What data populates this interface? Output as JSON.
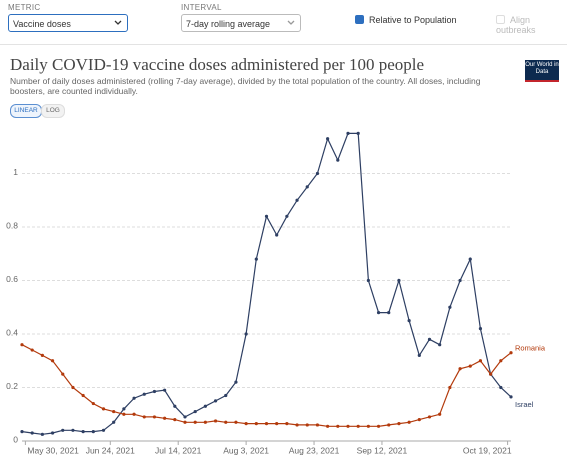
{
  "controls": {
    "metric_label": "METRIC",
    "metric": "Vaccine doses",
    "interval_label": "INTERVAL",
    "interval": "7-day rolling average",
    "relative": "Relative to Population",
    "align": "Align outbreaks",
    "linear": "LINEAR",
    "log": "LOG",
    "logo": "Our World in Data"
  },
  "chart_data": {
    "type": "line",
    "title": "Daily COVID-19 vaccine doses administered per 100 people",
    "subtitle": "Number of daily doses administered (rolling 7-day average), divided by the total population of the country. All doses, including boosters, are counted individually.",
    "x": [
      "2021-05-29",
      "2021-06-01",
      "2021-06-04",
      "2021-06-07",
      "2021-06-10",
      "2021-06-13",
      "2021-06-16",
      "2021-06-19",
      "2021-06-22",
      "2021-06-25",
      "2021-06-28",
      "2021-07-01",
      "2021-07-04",
      "2021-07-07",
      "2021-07-10",
      "2021-07-13",
      "2021-07-16",
      "2021-07-19",
      "2021-07-22",
      "2021-07-25",
      "2021-07-28",
      "2021-07-31",
      "2021-08-03",
      "2021-08-06",
      "2021-08-09",
      "2021-08-12",
      "2021-08-15",
      "2021-08-18",
      "2021-08-21",
      "2021-08-24",
      "2021-08-27",
      "2021-08-30",
      "2021-09-02",
      "2021-09-05",
      "2021-09-08",
      "2021-09-11",
      "2021-09-14",
      "2021-09-17",
      "2021-09-20",
      "2021-09-23",
      "2021-09-26",
      "2021-09-29",
      "2021-10-02",
      "2021-10-05",
      "2021-10-08",
      "2021-10-11",
      "2021-10-14",
      "2021-10-17",
      "2021-10-20"
    ],
    "series": [
      {
        "name": "Israel",
        "color": "#2e3f63",
        "values": [
          0.035,
          0.03,
          0.025,
          0.03,
          0.04,
          0.04,
          0.035,
          0.035,
          0.04,
          0.07,
          0.12,
          0.16,
          0.175,
          0.185,
          0.19,
          0.13,
          0.09,
          0.11,
          0.13,
          0.15,
          0.17,
          0.22,
          0.4,
          0.68,
          0.84,
          0.77,
          0.84,
          0.9,
          0.95,
          1.0,
          1.13,
          1.05,
          1.15,
          1.15,
          0.6,
          0.48,
          0.48,
          0.6,
          0.45,
          0.32,
          0.38,
          0.36,
          0.5,
          0.6,
          0.68,
          0.42,
          0.25,
          0.2,
          0.165
        ]
      },
      {
        "name": "Romania",
        "color": "#b33a0c",
        "values": [
          0.36,
          0.34,
          0.32,
          0.3,
          0.25,
          0.2,
          0.17,
          0.14,
          0.12,
          0.11,
          0.1,
          0.1,
          0.09,
          0.09,
          0.085,
          0.08,
          0.07,
          0.07,
          0.07,
          0.075,
          0.07,
          0.07,
          0.065,
          0.065,
          0.065,
          0.065,
          0.065,
          0.06,
          0.06,
          0.06,
          0.055,
          0.055,
          0.055,
          0.055,
          0.055,
          0.055,
          0.06,
          0.065,
          0.07,
          0.08,
          0.09,
          0.1,
          0.2,
          0.27,
          0.28,
          0.3,
          0.25,
          0.3,
          0.33
        ]
      }
    ],
    "xlim": [
      "2021-05-29",
      "2021-10-20"
    ],
    "xticks": [
      {
        "value": "2021-05-30",
        "label": "May 30, 2021"
      },
      {
        "value": "2021-06-24",
        "label": "Jun 24, 2021"
      },
      {
        "value": "2021-07-14",
        "label": "Jul 14, 2021"
      },
      {
        "value": "2021-08-03",
        "label": "Aug 3, 2021"
      },
      {
        "value": "2021-08-23",
        "label": "Aug 23, 2021"
      },
      {
        "value": "2021-09-12",
        "label": "Sep 12, 2021"
      },
      {
        "value": "2021-10-19",
        "label": "Oct 19, 2021"
      }
    ],
    "ylim": [
      0,
      1.2
    ],
    "yticks": [
      0,
      0.2,
      0.4,
      0.6,
      0.8,
      1
    ],
    "grid": true
  }
}
